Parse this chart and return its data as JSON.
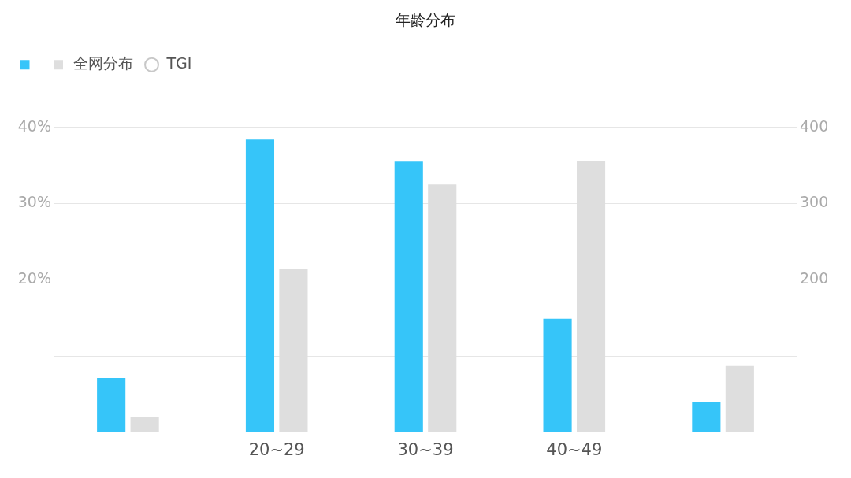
{
  "chart_data": {
    "type": "bar",
    "title": "年龄分布",
    "categories": [
      null,
      "20~29",
      "30~39",
      "40~49",
      null
    ],
    "series": [
      {
        "color": "#36c5f9",
        "values": [
          7.1,
          38.4,
          35.5,
          14.9,
          4.0
        ]
      },
      {
        "name": "全网分布",
        "color": "#dedede",
        "values": [
          2.0,
          21.4,
          32.5,
          35.6,
          8.7
        ]
      },
      {
        "name": "TGI",
        "type": "line",
        "color": "#c8c8c8",
        "marker": "circle",
        "values": [
          null,
          null,
          null,
          null,
          null
        ]
      }
    ],
    "ylim": [
      0,
      40
    ],
    "yticks": [
      {
        "value": 0,
        "label": null
      },
      {
        "value": 10,
        "label": null
      },
      {
        "value": 20,
        "label": "20%"
      },
      {
        "value": 30,
        "label": "30%"
      },
      {
        "value": 40,
        "label": "40%"
      }
    ],
    "y2lim": [
      0,
      400
    ],
    "y2ticks": [
      200,
      300,
      400
    ],
    "grid": "y",
    "legend": "top left"
  }
}
